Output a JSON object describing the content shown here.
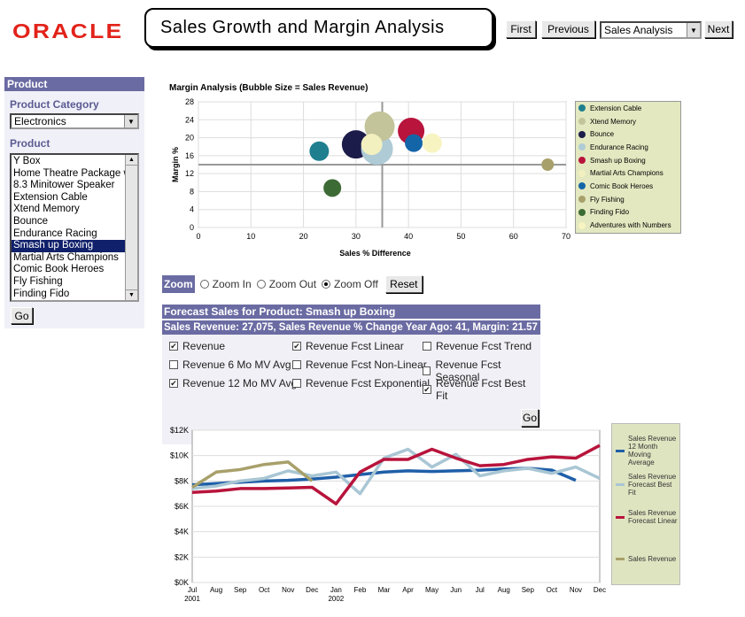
{
  "brand": "ORACLE",
  "page_title": "Sales Growth and Margin Analysis",
  "nav": {
    "first": "First",
    "previous": "Previous",
    "select_value": "Sales Analysis",
    "next": "Next"
  },
  "left_panel": {
    "header": "Product",
    "category_label": "Product Category",
    "category_value": "Electronics",
    "product_label": "Product",
    "products": [
      "Y Box",
      "Home Theatre Package w",
      "8.3 Minitower Speaker",
      "Extension Cable",
      "Xtend Memory",
      "Bounce",
      "Endurance Racing",
      "Smash up Boxing",
      "Martial Arts Champions",
      "Comic Book Heroes",
      "Fly Fishing",
      "Finding Fido"
    ],
    "selected_index": 7,
    "go": "Go"
  },
  "bubble_chart": {
    "title": "Margin Analysis (Bubble Size = Sales Revenue)",
    "xlabel": "Sales % Difference",
    "ylabel": "Margin %",
    "x_ticks": [
      "0",
      "10",
      "20",
      "30",
      "40",
      "50",
      "60",
      "70"
    ],
    "y_ticks": [
      "0",
      "4",
      "8",
      "12",
      "16",
      "20",
      "24",
      "28"
    ],
    "legend": [
      {
        "name": "Extension Cable",
        "color": "#1f7f8f"
      },
      {
        "name": "Xtend Memory",
        "color": "#c3c49a"
      },
      {
        "name": "Bounce",
        "color": "#1c1c4a"
      },
      {
        "name": "Endurance Racing",
        "color": "#aecbd6"
      },
      {
        "name": "Smash up Boxing",
        "color": "#b8143c"
      },
      {
        "name": "Martial Arts Champions",
        "color": "#f3f0c0"
      },
      {
        "name": "Comic Book Heroes",
        "color": "#1465a8"
      },
      {
        "name": "Fly Fishing",
        "color": "#a8a06a"
      },
      {
        "name": "Finding Fido",
        "color": "#3d6b35"
      },
      {
        "name": "Adventures with Numbers",
        "color": "#f8f4c2"
      }
    ]
  },
  "chart_data": [
    {
      "type": "scatter",
      "title": "Margin Analysis (Bubble Size = Sales Revenue)",
      "xlabel": "Sales % Difference",
      "ylabel": "Margin %",
      "xlim": [
        0,
        70
      ],
      "ylim": [
        0,
        28
      ],
      "reference_lines": {
        "x": 35,
        "y": 14
      },
      "points": [
        {
          "name": "Extension Cable",
          "x": 23,
          "y": 17,
          "size": 11
        },
        {
          "name": "Bounce",
          "x": 30,
          "y": 18.5,
          "size": 16
        },
        {
          "name": "Endurance Racing",
          "x": 34,
          "y": 17.5,
          "size": 18
        },
        {
          "name": "Xtend Memory",
          "x": 34.5,
          "y": 22.5,
          "size": 17
        },
        {
          "name": "Martial Arts Champions",
          "x": 33,
          "y": 18.5,
          "size": 12
        },
        {
          "name": "Smash up Boxing",
          "x": 40.5,
          "y": 21.5,
          "size": 15
        },
        {
          "name": "Comic Book Heroes",
          "x": 41,
          "y": 18.8,
          "size": 10
        },
        {
          "name": "Adventures with Numbers",
          "x": 44.5,
          "y": 18.8,
          "size": 11
        },
        {
          "name": "Finding Fido",
          "x": 25.5,
          "y": 8.8,
          "size": 10
        },
        {
          "name": "Fly Fishing",
          "x": 66.5,
          "y": 14,
          "size": 7
        }
      ]
    },
    {
      "type": "line",
      "categories": [
        "Jul",
        "Aug",
        "Sep",
        "Oct",
        "Nov",
        "Dec",
        "Jan",
        "Feb",
        "Mar",
        "Apr",
        "May",
        "Jun",
        "Jul",
        "Aug",
        "Sep",
        "Oct",
        "Nov",
        "Dec"
      ],
      "year_labels": [
        "2001",
        "2002"
      ],
      "y_ticks": [
        "$0K",
        "$2K",
        "$4K",
        "$6K",
        "$8K",
        "$10K",
        "$12K"
      ],
      "ylim": [
        0,
        12000
      ],
      "series": [
        {
          "name": "Sales Revenue 12 Month Moving Average",
          "color": "#1f5fa8",
          "values": [
            7700,
            7800,
            7900,
            8000,
            8050,
            8150,
            8300,
            8500,
            8700,
            8800,
            8750,
            8800,
            8850,
            8950,
            9000,
            8850,
            8050,
            null
          ]
        },
        {
          "name": "Sales Revenue Forecast Best Fit",
          "color": "#a9c6d4",
          "values": [
            7400,
            7600,
            8000,
            8200,
            8800,
            8400,
            8700,
            7000,
            9800,
            10500,
            9100,
            10100,
            8400,
            8800,
            9000,
            8600,
            9100,
            8200
          ]
        },
        {
          "name": "Sales Revenue Forecast Linear",
          "color": "#b8143c",
          "values": [
            7100,
            7200,
            7400,
            7400,
            7450,
            7500,
            6200,
            8700,
            9700,
            9700,
            10500,
            9800,
            9200,
            9300,
            9700,
            9900,
            9800,
            10800
          ]
        },
        {
          "name": "Sales Revenue",
          "color": "#a8a06a",
          "values": [
            7500,
            8700,
            8900,
            9300,
            9500,
            8000,
            null,
            null,
            null,
            null,
            null,
            null,
            null,
            null,
            null,
            null,
            null,
            null
          ]
        }
      ]
    }
  ],
  "zoom": {
    "label": "Zoom",
    "zoom_in": "Zoom In",
    "zoom_out": "Zoom Out",
    "zoom_off": "Zoom Off",
    "reset": "Reset"
  },
  "forecast": {
    "title": "Forecast Sales for Product: Smash up Boxing",
    "summary": "Sales Revenue: 27,075, Sales Revenue % Change Year Ago: 41, Margin: 21.57",
    "options": [
      {
        "label": "Revenue",
        "checked": true
      },
      {
        "label": "Revenue Fcst Linear",
        "checked": true
      },
      {
        "label": "Revenue Fcst Trend",
        "checked": false
      },
      {
        "label": "Revenue 6 Mo MV Avg",
        "checked": false
      },
      {
        "label": "Revenue Fcst Non-Linear",
        "checked": false
      },
      {
        "label": "Revenue Fcst Seasonal",
        "checked": false
      },
      {
        "label": "Revenue 12 Mo MV Avg",
        "checked": true
      },
      {
        "label": "Revenue Fcst Exponential",
        "checked": false
      },
      {
        "label": "Revenue Fcst Best Fit",
        "checked": true
      }
    ],
    "go": "Go"
  },
  "line_legend": [
    {
      "text": "Sales Revenue 12 Month Moving Average",
      "color": "#1f5fa8"
    },
    {
      "text": "Sales Revenue Forecast Best Fit",
      "color": "#a9c6d4"
    },
    {
      "text": "Sales Revenue Forecast Linear",
      "color": "#b8143c"
    },
    {
      "text": "Sales Revenue",
      "color": "#a8a06a"
    }
  ]
}
